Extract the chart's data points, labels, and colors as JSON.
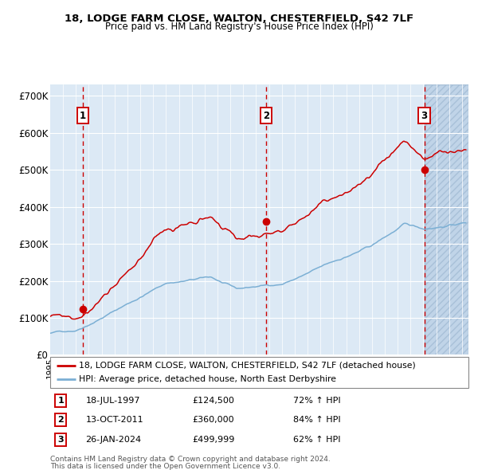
{
  "title1": "18, LODGE FARM CLOSE, WALTON, CHESTERFIELD, S42 7LF",
  "title2": "Price paid vs. HM Land Registry's House Price Index (HPI)",
  "xlim_start": 1995.0,
  "xlim_end": 2027.5,
  "ylim_min": 0,
  "ylim_max": 730000,
  "sale_dates_decimal": [
    1997.54,
    2011.78,
    2024.07
  ],
  "sale_prices": [
    124500,
    360000,
    499999
  ],
  "sale_labels": [
    "1",
    "2",
    "3"
  ],
  "sale_info": [
    {
      "label": "1",
      "date": "18-JUL-1997",
      "price": "£124,500",
      "hpi": "72% ↑ HPI"
    },
    {
      "label": "2",
      "date": "13-OCT-2011",
      "price": "£360,000",
      "hpi": "84% ↑ HPI"
    },
    {
      "label": "3",
      "date": "26-JAN-2024",
      "price": "£499,999",
      "hpi": "62% ↑ HPI"
    }
  ],
  "legend_line1": "18, LODGE FARM CLOSE, WALTON, CHESTERFIELD, S42 7LF (detached house)",
  "legend_line2": "HPI: Average price, detached house, North East Derbyshire",
  "footer1": "Contains HM Land Registry data © Crown copyright and database right 2024.",
  "footer2": "This data is licensed under the Open Government Licence v3.0.",
  "hatch_start": 2024.07,
  "ytick_labels": [
    "£0",
    "£100K",
    "£200K",
    "£300K",
    "£400K",
    "£500K",
    "£600K",
    "£700K"
  ],
  "ytick_values": [
    0,
    100000,
    200000,
    300000,
    400000,
    500000,
    600000,
    700000
  ],
  "bg_color": "#dce9f5",
  "red_line_color": "#cc0000",
  "blue_line_color": "#7bafd4",
  "grid_color": "#ffffff",
  "dashed_line_color": "#cc0000",
  "hatch_color": "#c0d4e8"
}
